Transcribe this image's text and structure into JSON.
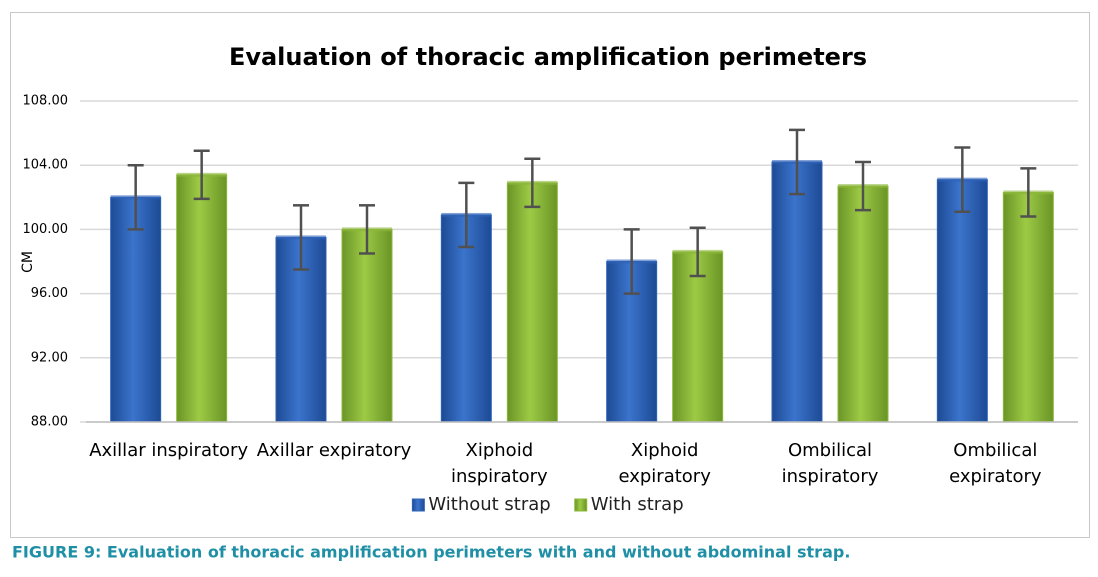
{
  "chart_data": {
    "type": "bar",
    "title": "Evaluation of thoracic amplification perimeters",
    "y_label": "CM",
    "categories": [
      "Axillar inspiratory",
      "Axillar expiratory",
      "Xiphoid inspiratory",
      "Xiphoid expiratory",
      "Ombilical inspiratory",
      "Ombilical expiratory"
    ],
    "series": [
      {
        "name": "Without strap",
        "color": "#2e63b8",
        "values": [
          102.0,
          99.5,
          100.9,
          98.0,
          104.2,
          103.1
        ],
        "errors": [
          2.0,
          2.0,
          2.0,
          2.0,
          2.0,
          2.0
        ]
      },
      {
        "name": "With strap",
        "color": "#8cb83a",
        "values": [
          103.4,
          100.0,
          102.9,
          98.6,
          102.7,
          102.3
        ],
        "errors": [
          1.5,
          1.5,
          1.5,
          1.5,
          1.5,
          1.5
        ]
      }
    ],
    "ylim": [
      88,
      108
    ],
    "yticks": [
      {
        "value": 88,
        "label": "88.00"
      },
      {
        "value": 92,
        "label": "92.00"
      },
      {
        "value": 96,
        "label": "96.00"
      },
      {
        "value": 100,
        "label": "100.00"
      },
      {
        "value": 104,
        "label": "104.00"
      },
      {
        "value": 108,
        "label": "108.00"
      }
    ],
    "grid": true,
    "legend": "bottom"
  },
  "caption": "FIGURE 9: Evaluation of thoracic amplification perimeters with and without abdominal strap."
}
